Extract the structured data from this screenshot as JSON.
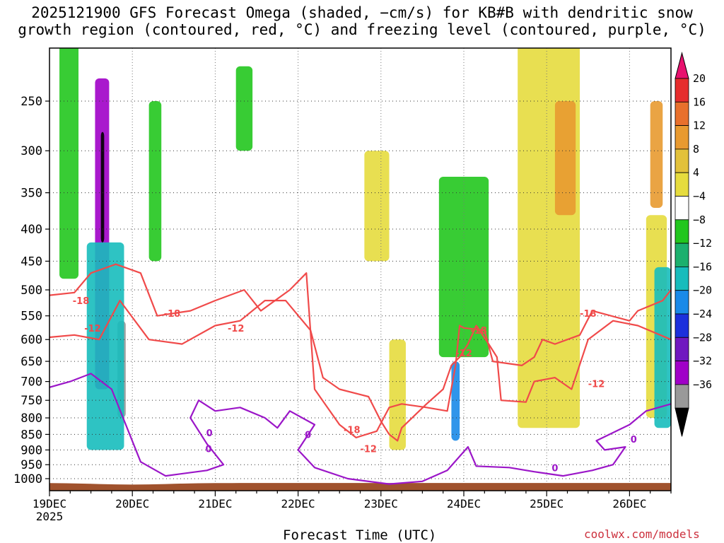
{
  "title": {
    "line1": "2025121900 GFS Forecast Omega (shaded, −cm/s) for KB#B with dendritic snow",
    "line2": "growth region (contoured, red, °C) and freezing level (contoured, purple, °C)"
  },
  "x_axis_title": "Forecast Time (UTC)",
  "credit": "coolwx.com/models",
  "chart_data": {
    "type": "heatmap",
    "x": {
      "ticks": [
        "19DEC",
        "20DEC",
        "21DEC",
        "22DEC",
        "23DEC",
        "24DEC",
        "25DEC",
        "26DEC"
      ],
      "year_label": "2025",
      "range_days": [
        0,
        7.5
      ]
    },
    "y": {
      "ticks": [
        250,
        300,
        350,
        400,
        450,
        500,
        550,
        600,
        650,
        700,
        750,
        800,
        850,
        900,
        950,
        1000
      ],
      "range_hpa": [
        200,
        1020
      ],
      "unit": "hPa"
    },
    "colorbar": {
      "labels": [
        "20",
        "16",
        "12",
        "8",
        "4",
        "−4",
        "−8",
        "−12",
        "−16",
        "−20",
        "−24",
        "−28",
        "−32",
        "−36"
      ],
      "colors": [
        "#e8116e",
        "#e62d2d",
        "#e8702c",
        "#e89a30",
        "#e2c13a",
        "#e6dc3e",
        "#ffffff",
        "#22c61e",
        "#1cb06e",
        "#17bcbc",
        "#1a8ae8",
        "#1c30dc",
        "#7018c0",
        "#a000c8",
        "#999999",
        "#000000"
      ]
    },
    "omega_regions": [
      {
        "x0": 0.55,
        "x1": 0.72,
        "p0": 230,
        "p1": 720,
        "value": -28
      },
      {
        "x0": 0.62,
        "x1": 0.66,
        "p0": 280,
        "p1": 420,
        "value": -36
      },
      {
        "x0": 0.82,
        "x1": 0.92,
        "p0": 560,
        "p1": 800,
        "value": -32
      },
      {
        "x0": 0.45,
        "x1": 0.9,
        "p0": 420,
        "p1": 900,
        "value": -12
      },
      {
        "x0": 0.12,
        "x1": 0.35,
        "p0": 200,
        "p1": 480,
        "value": -6
      },
      {
        "x0": 1.2,
        "x1": 1.35,
        "p0": 250,
        "p1": 450,
        "value": -6
      },
      {
        "x0": 2.25,
        "x1": 2.45,
        "p0": 220,
        "p1": 300,
        "value": -6
      },
      {
        "x0": 3.8,
        "x1": 4.1,
        "p0": 300,
        "p1": 450,
        "value": 6
      },
      {
        "x0": 4.1,
        "x1": 4.3,
        "p0": 600,
        "p1": 900,
        "value": 6
      },
      {
        "x0": 4.7,
        "x1": 5.3,
        "p0": 330,
        "p1": 640,
        "value": -7
      },
      {
        "x0": 4.85,
        "x1": 4.95,
        "p0": 650,
        "p1": 870,
        "value": -18
      },
      {
        "x0": 5.65,
        "x1": 6.4,
        "p0": 200,
        "p1": 830,
        "value": 5
      },
      {
        "x0": 6.1,
        "x1": 6.35,
        "p0": 250,
        "p1": 380,
        "value": 11
      },
      {
        "x0": 7.2,
        "x1": 7.45,
        "p0": 380,
        "p1": 800,
        "value": 5
      },
      {
        "x0": 7.25,
        "x1": 7.4,
        "p0": 250,
        "p1": 370,
        "value": 10
      },
      {
        "x0": 7.3,
        "x1": 7.5,
        "p0": 460,
        "p1": 830,
        "value": -14
      }
    ],
    "contours": [
      {
        "name": "-18",
        "color": "#f04a4a",
        "label": "-18",
        "points": [
          [
            0,
            510
          ],
          [
            0.3,
            505
          ],
          [
            0.5,
            470
          ],
          [
            0.8,
            455
          ],
          [
            1.1,
            470
          ],
          [
            1.3,
            550
          ],
          [
            1.7,
            540
          ],
          [
            2.0,
            520
          ],
          [
            2.35,
            500
          ],
          [
            2.55,
            540
          ],
          [
            2.9,
            500
          ],
          [
            3.1,
            470
          ],
          [
            3.2,
            720
          ],
          [
            3.5,
            820
          ],
          [
            3.7,
            860
          ],
          [
            3.95,
            840
          ],
          [
            4.1,
            770
          ],
          [
            4.25,
            760
          ],
          [
            4.55,
            770
          ],
          [
            4.8,
            780
          ],
          [
            4.9,
            660
          ],
          [
            4.95,
            570
          ],
          [
            5.0,
            575
          ],
          [
            5.25,
            580
          ],
          [
            5.35,
            650
          ],
          [
            5.7,
            660
          ],
          [
            5.85,
            640
          ],
          [
            5.95,
            600
          ],
          [
            6.1,
            610
          ],
          [
            6.4,
            590
          ],
          [
            6.55,
            540
          ],
          [
            7.0,
            560
          ],
          [
            7.1,
            540
          ],
          [
            7.4,
            520
          ],
          [
            7.5,
            500
          ]
        ]
      },
      {
        "name": "-12",
        "color": "#f04a4a",
        "label": "-12",
        "points": [
          [
            0,
            595
          ],
          [
            0.3,
            590
          ],
          [
            0.6,
            600
          ],
          [
            0.85,
            520
          ],
          [
            1.2,
            600
          ],
          [
            1.6,
            610
          ],
          [
            2.0,
            570
          ],
          [
            2.3,
            560
          ],
          [
            2.6,
            520
          ],
          [
            2.85,
            520
          ],
          [
            3.15,
            580
          ],
          [
            3.3,
            690
          ],
          [
            3.5,
            720
          ],
          [
            3.85,
            740
          ],
          [
            4.0,
            810
          ],
          [
            4.1,
            850
          ],
          [
            4.2,
            870
          ],
          [
            4.25,
            830
          ],
          [
            4.55,
            760
          ],
          [
            4.75,
            720
          ],
          [
            4.85,
            660
          ],
          [
            4.95,
            640
          ],
          [
            5.05,
            610
          ],
          [
            5.15,
            570
          ],
          [
            5.3,
            610
          ],
          [
            5.4,
            640
          ],
          [
            5.45,
            750
          ],
          [
            5.75,
            755
          ],
          [
            5.85,
            700
          ],
          [
            6.1,
            690
          ],
          [
            6.3,
            720
          ],
          [
            6.5,
            600
          ],
          [
            6.8,
            560
          ],
          [
            7.1,
            570
          ],
          [
            7.5,
            600
          ]
        ]
      },
      {
        "name": "0",
        "color": "#9b16c8",
        "label": "0",
        "points": [
          [
            0,
            715
          ],
          [
            0.25,
            700
          ],
          [
            0.5,
            680
          ],
          [
            0.75,
            720
          ],
          [
            1.1,
            940
          ],
          [
            1.4,
            990
          ],
          [
            1.9,
            970
          ],
          [
            2.1,
            950
          ],
          [
            1.9,
            880
          ],
          [
            1.7,
            800
          ],
          [
            1.8,
            750
          ],
          [
            2.0,
            780
          ],
          [
            2.3,
            770
          ],
          [
            2.6,
            800
          ],
          [
            2.75,
            830
          ],
          [
            2.9,
            780
          ],
          [
            3.2,
            820
          ],
          [
            3.0,
            900
          ],
          [
            3.2,
            960
          ],
          [
            3.6,
            1000
          ],
          [
            4.1,
            1020
          ],
          [
            4.5,
            1010
          ],
          [
            4.8,
            970
          ],
          [
            5.05,
            890
          ],
          [
            5.15,
            955
          ],
          [
            5.55,
            960
          ],
          [
            5.85,
            975
          ],
          [
            6.2,
            990
          ],
          [
            6.55,
            970
          ],
          [
            6.8,
            950
          ],
          [
            6.95,
            890
          ],
          [
            6.7,
            900
          ],
          [
            6.6,
            870
          ],
          [
            7.0,
            820
          ],
          [
            7.2,
            780
          ],
          [
            7.35,
            770
          ],
          [
            7.5,
            760
          ]
        ]
      }
    ],
    "contour_labels": [
      {
        "text": "-18",
        "x": 0.38,
        "p": 520
      },
      {
        "text": "-12",
        "x": 0.52,
        "p": 575
      },
      {
        "text": "-18",
        "x": 1.48,
        "p": 545
      },
      {
        "text": "-12",
        "x": 2.25,
        "p": 575
      },
      {
        "text": "-18",
        "x": 3.65,
        "p": 835
      },
      {
        "text": "-12",
        "x": 3.85,
        "p": 895
      },
      {
        "text": "-18",
        "x": 5.18,
        "p": 580
      },
      {
        "text": "-12",
        "x": 5.0,
        "p": 630
      },
      {
        "text": "-18",
        "x": 6.5,
        "p": 545
      },
      {
        "text": "-12",
        "x": 6.6,
        "p": 705
      },
      {
        "text": "0",
        "x": 1.93,
        "p": 845
      },
      {
        "text": "0",
        "x": 1.92,
        "p": 895
      },
      {
        "text": "0",
        "x": 3.12,
        "p": 850
      },
      {
        "text": "0",
        "x": 6.1,
        "p": 960
      },
      {
        "text": "0",
        "x": 7.05,
        "p": 865
      }
    ]
  }
}
